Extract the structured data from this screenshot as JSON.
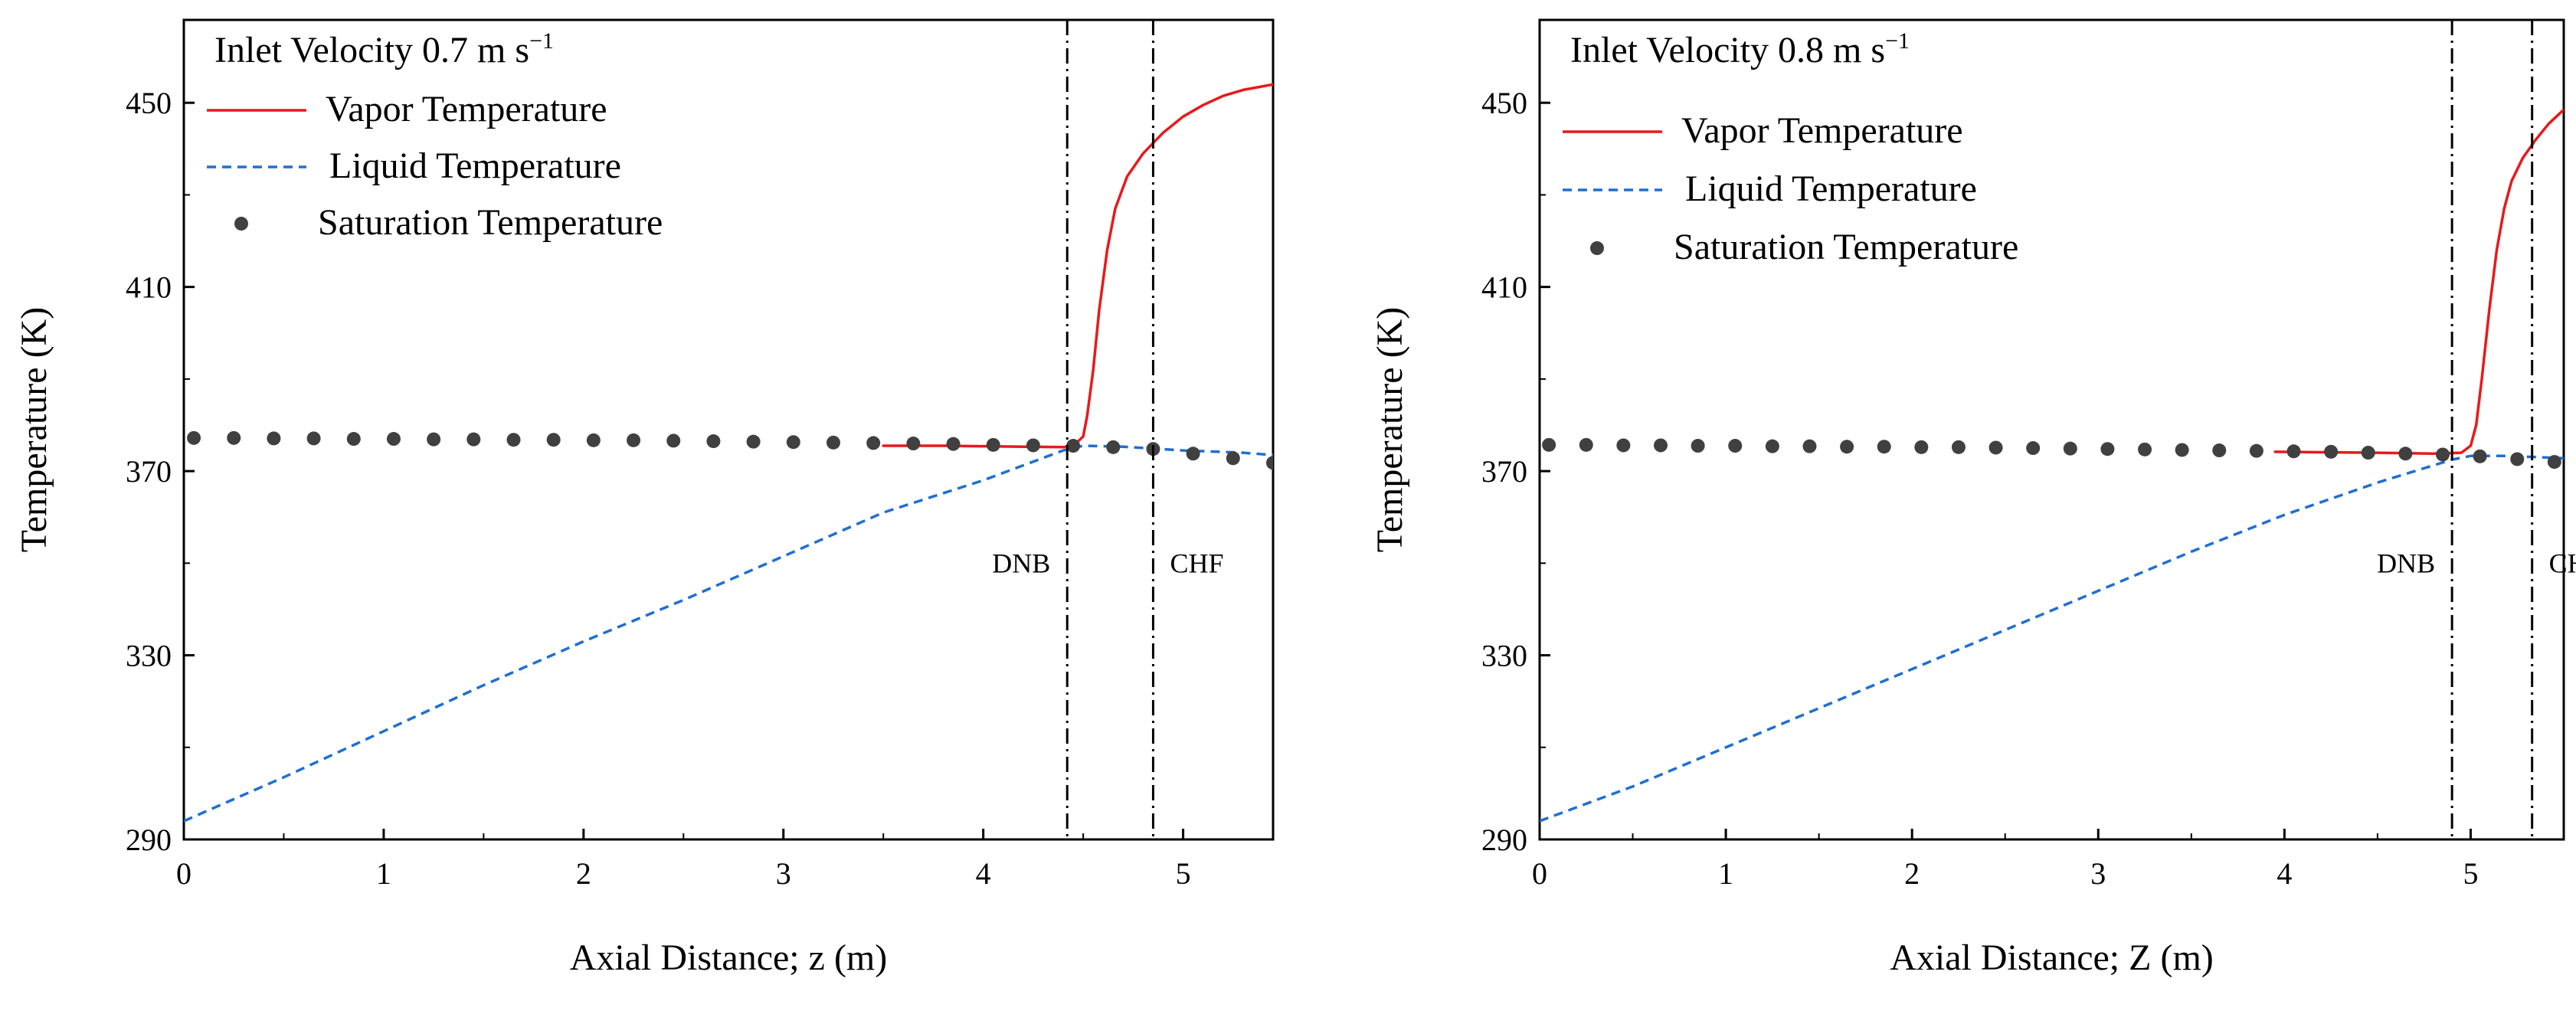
{
  "chart_data": [
    {
      "type": "line",
      "title": "Inlet Velocity 0.7 m s",
      "title_superscript": "−1",
      "xlabel": "Axial Distance; z (m)",
      "ylabel": "Temperature (K)",
      "xlim": [
        0,
        5.45
      ],
      "ylim": [
        290,
        468
      ],
      "xticks": [
        0,
        1,
        2,
        3,
        4,
        5
      ],
      "yticks": [
        290,
        330,
        370,
        410,
        450
      ],
      "grid": false,
      "legend_position": "top-left",
      "series": [
        {
          "name": "Vapor Temperature",
          "style": "solid",
          "color": "#e8191c",
          "x": [
            3.5,
            3.8,
            4.0,
            4.2,
            4.4,
            4.45,
            4.5,
            4.52,
            4.55,
            4.58,
            4.62,
            4.66,
            4.72,
            4.8,
            4.9,
            5.0,
            5.1,
            5.2,
            5.3,
            5.4,
            5.45
          ],
          "y": [
            375.5,
            375.5,
            375.4,
            375.3,
            375.2,
            375.5,
            377.5,
            382,
            392,
            405,
            418,
            427,
            434,
            439,
            443.5,
            447,
            449.5,
            451.5,
            452.8,
            453.6,
            454
          ]
        },
        {
          "name": "Liquid Temperature",
          "style": "dashed",
          "color": "#1f6fd1",
          "x": [
            0,
            0.5,
            1.0,
            1.5,
            2.0,
            2.5,
            3.0,
            3.5,
            4.0,
            4.4,
            4.5,
            4.7,
            5.0,
            5.3,
            5.45
          ],
          "y": [
            294,
            303.5,
            313.5,
            323.5,
            333,
            342,
            351.5,
            361,
            368,
            374.5,
            375.5,
            375.3,
            374.5,
            374,
            373.5
          ]
        },
        {
          "name": "Saturation Temperature",
          "style": "dots",
          "color": "#404040",
          "x": [
            0.05,
            0.25,
            0.45,
            0.65,
            0.85,
            1.05,
            1.25,
            1.45,
            1.65,
            1.85,
            2.05,
            2.25,
            2.45,
            2.65,
            2.85,
            3.05,
            3.25,
            3.45,
            3.65,
            3.85,
            4.05,
            4.25,
            4.45,
            4.65,
            4.85,
            5.05,
            5.25,
            5.45
          ],
          "y": [
            377.2,
            377.2,
            377.1,
            377.1,
            377.0,
            377.0,
            376.9,
            376.9,
            376.8,
            376.8,
            376.7,
            376.7,
            376.6,
            376.5,
            376.4,
            376.3,
            376.2,
            376.1,
            376.0,
            375.9,
            375.7,
            375.6,
            375.5,
            375.2,
            374.8,
            373.8,
            372.8,
            371.8
          ]
        }
      ],
      "annotations": [
        {
          "label": "DNB",
          "x": 4.42
        },
        {
          "label": "CHF",
          "x": 4.85
        }
      ]
    },
    {
      "type": "line",
      "title": "Inlet Velocity 0.8 m s",
      "title_superscript": "−1",
      "xlabel": "Axial Distance; Z (m)",
      "ylabel": "Temperature (K)",
      "xlim": [
        0,
        5.5
      ],
      "ylim": [
        290,
        468
      ],
      "xticks": [
        0,
        1,
        2,
        3,
        4,
        5
      ],
      "yticks": [
        290,
        330,
        370,
        410,
        450
      ],
      "grid": false,
      "legend_position": "top-left",
      "series": [
        {
          "name": "Vapor Temperature",
          "style": "solid",
          "color": "#e8191c",
          "x": [
            3.95,
            4.2,
            4.5,
            4.8,
            4.95,
            5.0,
            5.03,
            5.06,
            5.1,
            5.14,
            5.18,
            5.22,
            5.28,
            5.35,
            5.42,
            5.5
          ],
          "y": [
            374.2,
            374.1,
            374.0,
            373.8,
            374.0,
            375.5,
            380,
            390,
            405,
            418,
            427,
            433,
            438,
            442,
            445.5,
            448.5
          ]
        },
        {
          "name": "Liquid Temperature",
          "style": "dashed",
          "color": "#1f6fd1",
          "x": [
            0,
            0.5,
            1.0,
            1.5,
            2.0,
            2.5,
            3.0,
            3.5,
            4.0,
            4.5,
            4.9,
            5.0,
            5.2,
            5.5
          ],
          "y": [
            294,
            301.5,
            310,
            318.5,
            327,
            335.5,
            344,
            352.5,
            360.5,
            367.5,
            372.5,
            373.3,
            373.3,
            372.8
          ]
        },
        {
          "name": "Saturation Temperature",
          "style": "dots",
          "color": "#404040",
          "x": [
            0.05,
            0.25,
            0.45,
            0.65,
            0.85,
            1.05,
            1.25,
            1.45,
            1.65,
            1.85,
            2.05,
            2.25,
            2.45,
            2.65,
            2.85,
            3.05,
            3.25,
            3.45,
            3.65,
            3.85,
            4.05,
            4.25,
            4.45,
            4.65,
            4.85,
            5.05,
            5.25,
            5.45
          ],
          "y": [
            375.7,
            375.7,
            375.6,
            375.6,
            375.5,
            375.5,
            375.4,
            375.4,
            375.3,
            375.3,
            375.2,
            375.2,
            375.1,
            375.0,
            374.9,
            374.8,
            374.7,
            374.6,
            374.5,
            374.4,
            374.3,
            374.2,
            374.0,
            373.8,
            373.6,
            373.2,
            372.6,
            372.0
          ]
        }
      ],
      "annotations": [
        {
          "label": "DNB",
          "x": 4.9
        },
        {
          "label": "CHF",
          "x": 5.33
        }
      ]
    }
  ]
}
